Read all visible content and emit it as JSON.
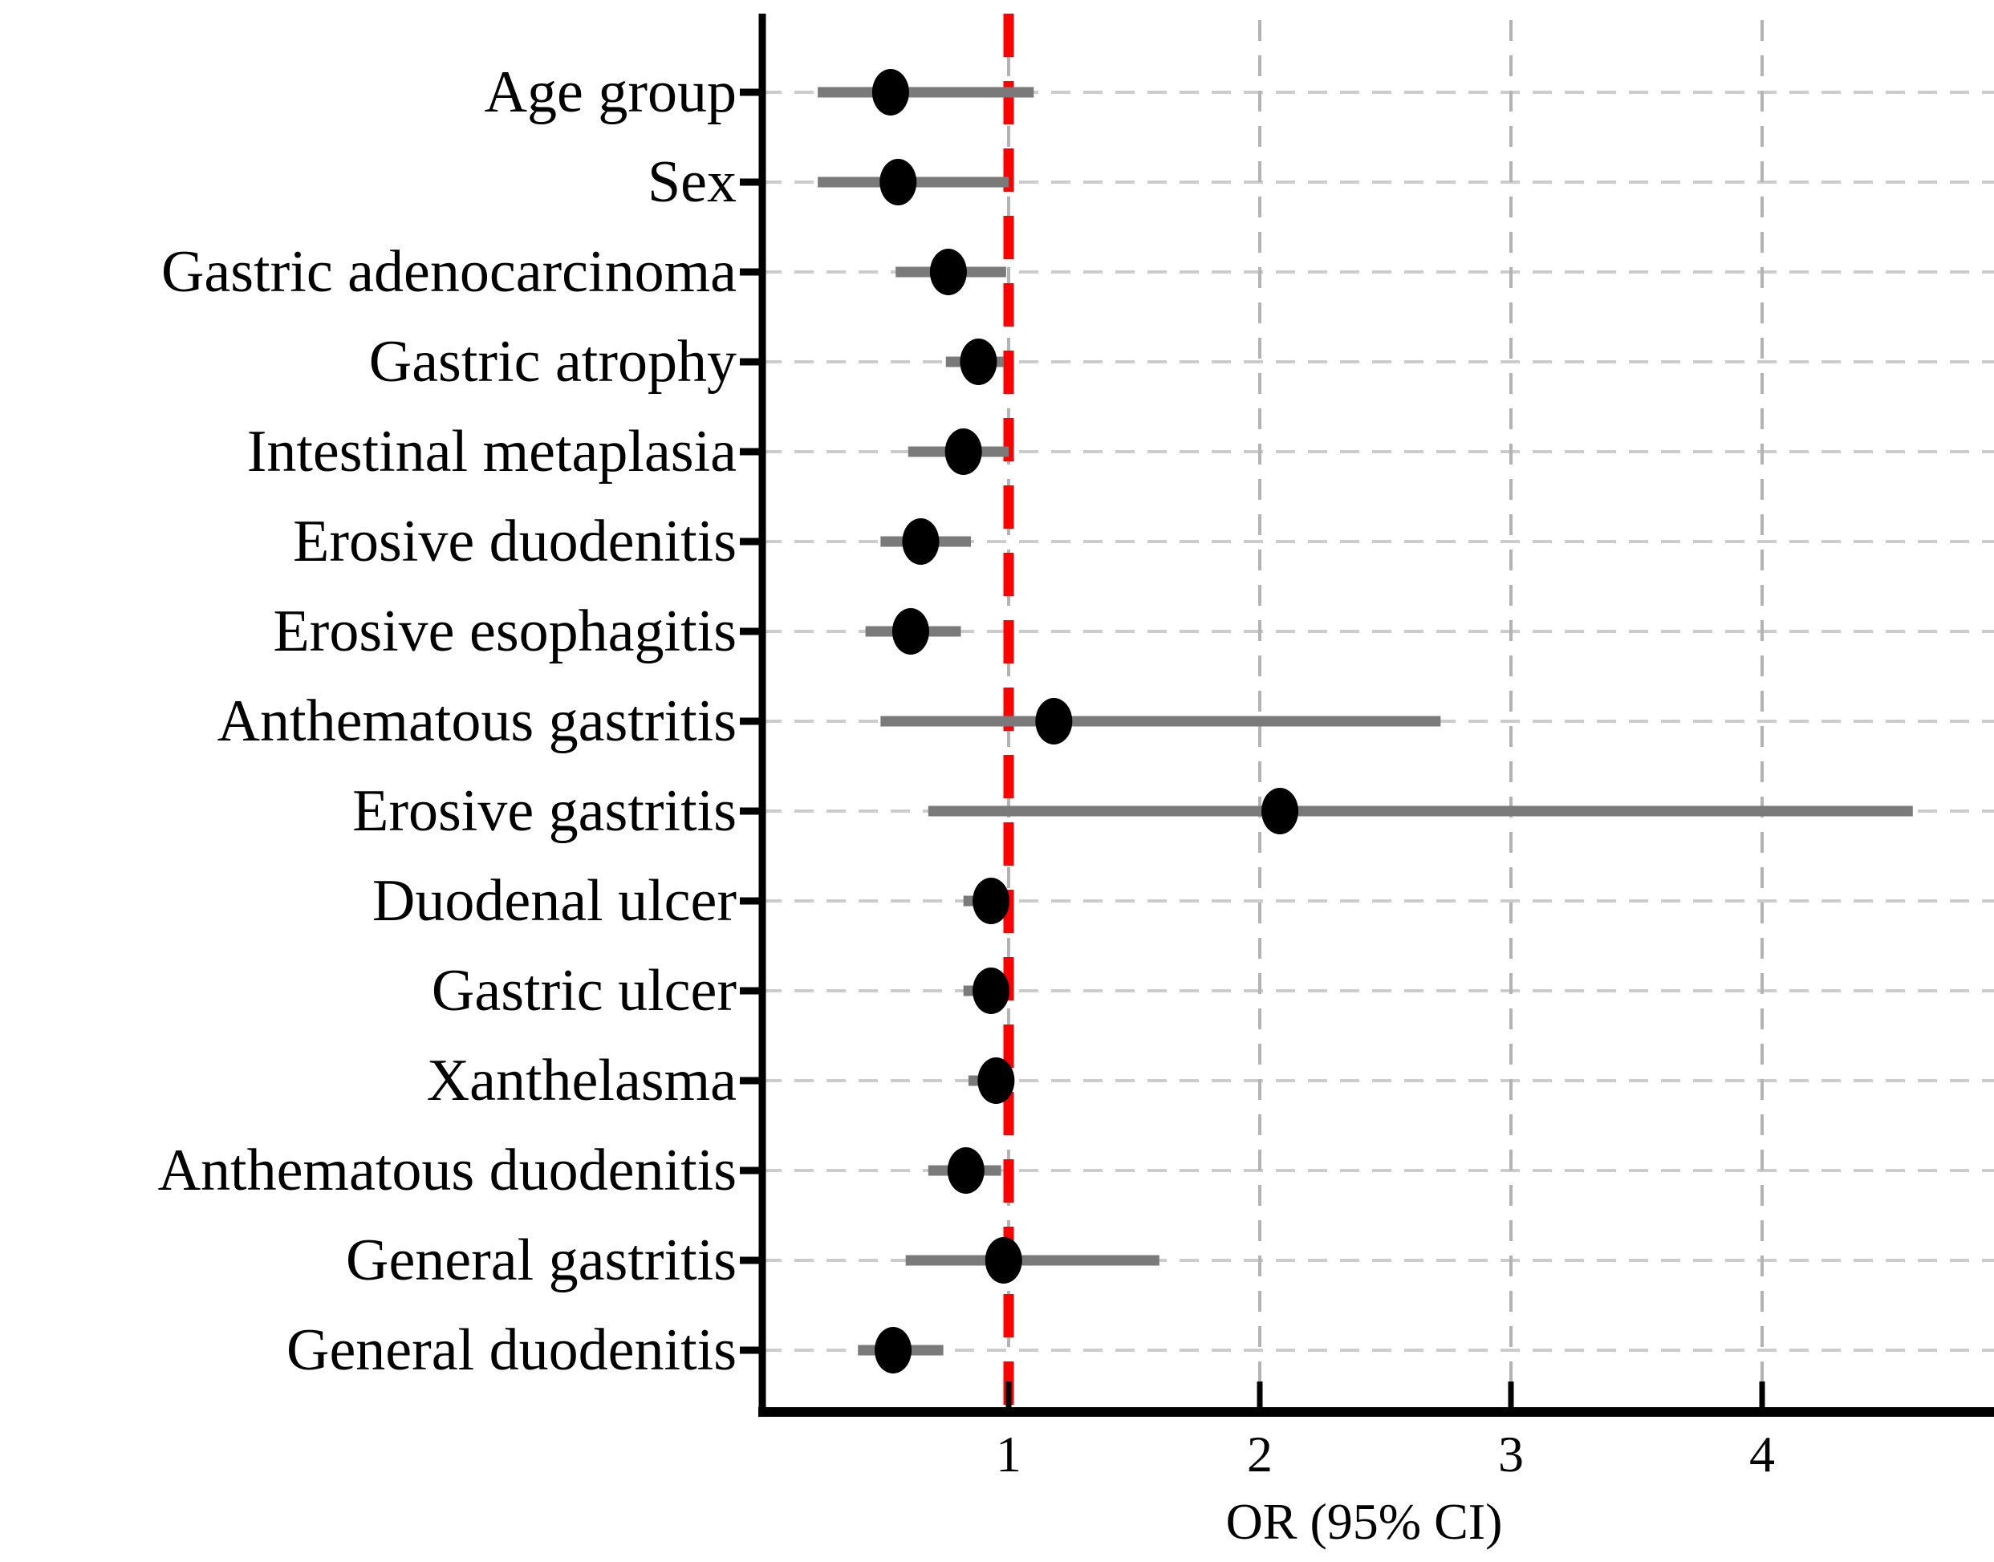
{
  "figure": {
    "background": "#ffffff"
  },
  "chart_data": {
    "type": "scatter",
    "variant": "forest-plot",
    "title": "",
    "xlabel": "OR (95% CI)",
    "ylabel": "",
    "xlim": [
      0.02,
      4.92
    ],
    "x_ticks": [
      1,
      2,
      3,
      4
    ],
    "x_tick_labels": [
      "1",
      "2",
      "3",
      "4"
    ],
    "grid": true,
    "legend": "none",
    "reference_line": {
      "x": 1,
      "style": "dashed",
      "color": "#ff0000"
    },
    "colors": {
      "marker": "#000000",
      "ci_bar": "#7a7a7a",
      "h_grid": "#cccccc",
      "v_grid": "#b3b3b3",
      "axis": "#000000",
      "reference": "#ff0000"
    },
    "items": [
      {
        "label": "Age group",
        "or": 0.53,
        "ci_low": 0.24,
        "ci_high": 1.1
      },
      {
        "label": "Sex",
        "or": 0.56,
        "ci_low": 0.24,
        "ci_high": 1.0
      },
      {
        "label": "Gastric adenocarcinoma",
        "or": 0.76,
        "ci_low": 0.55,
        "ci_high": 0.99
      },
      {
        "label": "Gastric atrophy",
        "or": 0.88,
        "ci_low": 0.75,
        "ci_high": 0.98
      },
      {
        "label": "Intestinal metaplasia",
        "or": 0.82,
        "ci_low": 0.6,
        "ci_high": 1.0
      },
      {
        "label": "Erosive duodenitis",
        "or": 0.65,
        "ci_low": 0.49,
        "ci_high": 0.85
      },
      {
        "label": "Erosive esophagitis",
        "or": 0.61,
        "ci_low": 0.43,
        "ci_high": 0.81
      },
      {
        "label": "Anthematous gastritis",
        "or": 1.18,
        "ci_low": 0.49,
        "ci_high": 2.72
      },
      {
        "label": "Erosive gastritis",
        "or": 2.08,
        "ci_low": 0.68,
        "ci_high": 4.6
      },
      {
        "label": "Duodenal ulcer",
        "or": 0.93,
        "ci_low": 0.82,
        "ci_high": 1.0
      },
      {
        "label": "Gastric ulcer",
        "or": 0.93,
        "ci_low": 0.82,
        "ci_high": 1.0
      },
      {
        "label": "Xanthelasma",
        "or": 0.95,
        "ci_low": 0.84,
        "ci_high": 1.0
      },
      {
        "label": "Anthematous duodenitis",
        "or": 0.83,
        "ci_low": 0.68,
        "ci_high": 0.97
      },
      {
        "label": "General gastritis",
        "or": 0.98,
        "ci_low": 0.59,
        "ci_high": 1.6
      },
      {
        "label": "General duodenitis",
        "or": 0.54,
        "ci_low": 0.4,
        "ci_high": 0.74
      }
    ]
  }
}
